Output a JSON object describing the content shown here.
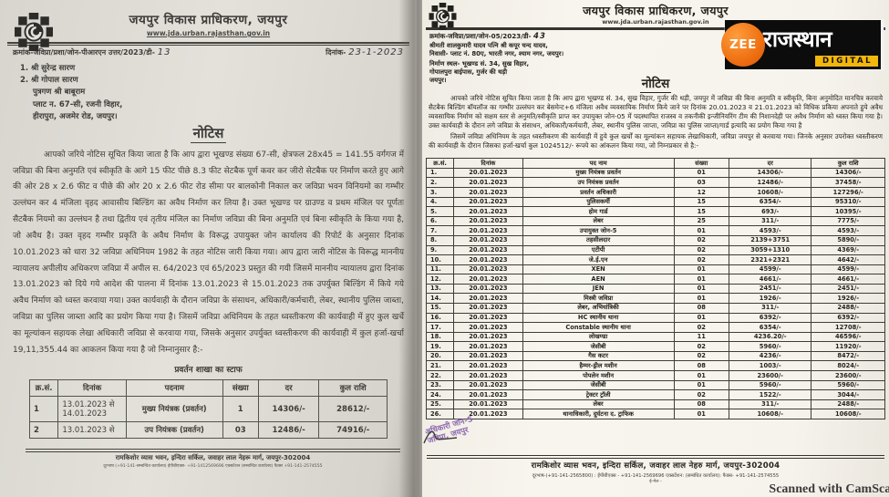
{
  "zee_logo": {
    "zee": "ZEE",
    "name": "राजस्थान",
    "digital": "DIGITAL",
    "black": "#0c0c0c",
    "orange": "#ee7011",
    "yellow": "#f2b70d"
  },
  "left_doc": {
    "org_name": "जयपुर विकास प्राधिकरण, जयपुर",
    "website": "www.jda.urban.rajasthan.gov.in",
    "ref_prefix": "क्रमांक-जविप्रा/प्रशा/जोन-पीआरएन उत्तर/2023/डी-",
    "ref_number": "13",
    "date_prefix": "दिनांक-",
    "date_value": "23-1-2023",
    "addressees": [
      "1.  श्री सुरेन्द्र सारण",
      "2.  श्री गोपाल सारण",
      "पुत्रगण श्री बाबूराम",
      "प्लाट न. 67-सी, रजनी विहार,",
      "हीरापुरा, अजमेर रोड, जयपुर।"
    ],
    "notice_heading": "नोटिस",
    "body": "आपको जरिये नोटिस सूचित किया जाता है कि आप द्वारा भूखण्ड संख्या 67-सी, क्षेत्रफल 28x45 = 141.55 वर्गगज में जविप्रा की बिना अनुमति एवं स्वीकृति के आगे 15 फीट पीछे 8.3 फीट सेटबैक पूर्ण कवर कर जीरो सेटबैक पर निर्माण करते हुए आगे की ओर 28 x 2.6 फीट व पीछे की ओर 20 x 2.6 फीट रोड सीमा पर बालकोनी निकाल कर जविप्रा भवन विनियमो का गम्भीर उल्लंघन कर 4 मंजिला वृहद आवासीय बिल्डिंग का अवैध निर्माण कर लिया है। उक्त भूखण्ड पर ग्राउण्ड व प्रथम मंजिल पर पूर्णतः सैटबैक नियमो का उल्लंघन है तथा द्वितीय एवं तृतीय मंजिल का निर्माण जविप्रा की बिना अनुमति एवं बिना स्वीकृति के किया गया है, जो अवैध है। उक्त वृहद गम्भीर प्रकृति के अवैध निर्माण के विरूद्ध उपायुक्त जोन कार्यालय की रिपोर्ट के अनुसार दिनांक 10.01.2023 को धारा 32 जविप्रा अधिनियम 1982 के तहत नोटिस जारी किया गया। आप द्वारा जारी नोटिस के विरूद्ध माननीय न्यायालय अपीलीय अधिकरण जविप्रा में अपील स. 64/2023 एवं 65/2023 प्रस्तुत की गयी जिसमें माननीय न्यायालय द्वारा दिनांक 13.01.2023 को दिये गये आदेश की पालना में दिनांक 13.01.2023 से 15.01.2023 तक उपर्युक्त बिल्डिंग में किये गये अवैध निर्माण को ध्वस्त करवाया गया। उक्त कार्यवाही के दौरान जविप्रा के संसाधन, अधिकारी/कर्मचारी, लेबर, स्थानीय पुलिस जाब्ता, जविप्रा का पुलिस जाब्ता आदि का प्रयोग किया गया है। जिसमें जविप्रा अधिनियम के तहत ध्वस्तीकरण की कार्यवाही में हुए कुल खर्चे का मूल्यांकन सहायक लेखा अधिकारी जविप्रा से करवाया गया, जिसके अनुसार उपर्युक्त ध्वस्तीकरण की कार्यवाही में कुल हर्जा-खर्चा 19,11,355.44 का आकलन किया गया है जो निम्नानुसार है:-",
    "table_title": "प्रवर्तन शाखा का स्टाफ",
    "table": {
      "headers": [
        "क्र.सं.",
        "दिनांक",
        "पदनाम",
        "संख्या",
        "दर",
        "कुल राशि"
      ],
      "rows": [
        [
          "1",
          "13.01.2023 से 14.01.2023",
          "मुख्य नियंत्रक (प्रवर्तन)",
          "1",
          "14306/-",
          "28612/-"
        ],
        [
          "2",
          "13.01.2023 से",
          "उप नियंत्रक (प्रवर्तन)",
          "03",
          "12486/-",
          "74916/-"
        ]
      ]
    },
    "footer_address": "रामकिशोर व्यास भवन, इन्दिरा सर्किल, जवाहर  लाल नेहरू मार्ग, जयपुर-302004",
    "footer_phone": "दूरभाष (+91-141-सम्बन्धित कार्यालय) ईपीबीएक्स- +91-1412569696 एक्सटेंशन (सम्बन्धित कार्यालय) फैक्स +91-141-2574555"
  },
  "right_doc": {
    "org_name": "जयपुर विकास प्राधिकरण, जयपुर",
    "website": "www.jda.urban.rajasthan.gov.in",
    "ref_prefix": "क्रमांक-जविप्रा/प्रशा/जोन-05/2023/डी-",
    "ref_number": "43",
    "addressees": [
      "श्रीमती शालकुमारी यादव पत्नि श्री कपूर चन्द यादव,",
      "निवासी- प्लाट नं. 80ए, भारती नगर, श्याम नगर, जयपुर।",
      "निर्माण स्थल- भूखण्ड सं. 34, सुख विहार,",
      "गोपालपुरा बाईपास, गुर्जर की थड़ी",
      "जयपुर।"
    ],
    "notice_heading": "नोटिस",
    "body_para1": "आपको जरिये नोटिस सूचित किया जाता है कि आप द्वारा भूखण्ड सं. 34, सुख विहार, गुर्जर की थड़ी, जयपुर में जविप्रा की बिना अनुमति व स्वीकृति, बिना अनुमोदित मानचित्र करवाये सैटबैक बिल्डिंग बॉयलॉज का गम्भीर उल्लंघन कर बेसमेन्ट+6 मंजिला अवैध व्यवसायिक निर्माण किये जाने पर दिनांक 20.01.2023 व 21.01.2023 को विधिक प्रकिया अपनाते हुये अवैध व्यवसायिक निर्माण को सक्षम स्तर से अनुमति/स्वीकृति प्राप्त कर उपायुक्त जोन-05 में पदस्थापित राजस्व व तकनीकी इन्जीनियरिंग टीम की निशानदेही पर अवैध निर्माण को ध्वस्त किया गया है। उक्त कार्यवाही के दौरान लगे जविप्रा के संसाधन, अधिकारी/कर्मचारी, लेबर, स्थानीय पुलिस जाप्ता, जविप्रा का पुलिस जाप्ता/गार्ड इत्यादि का प्रयोग किया गया है",
    "body_para2": "जिसमें जविप्रा अधिनियम के तहत ध्वस्तीकरण की कार्यवाही में हुये कुल खर्चों का मूल्यांकन सहायक लेखाधिकारी, जविप्रा जयपुर से करवाया गया। जिनके अनुसार उपरोक्त ध्वस्तीकरण की कार्यवाही के दौरान जिसका हर्जा-खर्चा कुल 1024512/- रूपये का आंकलन किया गया, जो निम्नप्रकार से है:-",
    "table": {
      "headers": [
        "क्र.सं.",
        "दिनांक",
        "पद नाम",
        "संख्या",
        "दर",
        "कुल राशि"
      ],
      "rows": [
        [
          "1.",
          "20.01.2023",
          "मुख्य नियंत्रक प्रवर्तन",
          "01",
          "14306/-",
          "14306/-"
        ],
        [
          "2.",
          "20.01.2023",
          "उप नियंत्रक प्रवर्तन",
          "03",
          "12486/-",
          "37458/-"
        ],
        [
          "3.",
          "20.01.2023",
          "प्रवर्तन अधिकारी",
          "12",
          "10608/-",
          "127296/-"
        ],
        [
          "4.",
          "20.01.2023",
          "पुलिसकर्मी",
          "15",
          "6354/-",
          "95310/-"
        ],
        [
          "5.",
          "20.01.2023",
          "होम गार्ड",
          "15",
          "693/-",
          "10395/-"
        ],
        [
          "6.",
          "20.01.2023",
          "लेबर",
          "25",
          "311/-",
          "7775/-"
        ],
        [
          "7.",
          "20.01.2023",
          "उपायुक्त जोन-5",
          "01",
          "4593/-",
          "4593/-"
        ],
        [
          "8.",
          "20.01.2023",
          "तहसीलदार",
          "02",
          "2139+3751",
          "5890/-"
        ],
        [
          "9.",
          "20.01.2023",
          "एटीपी",
          "02",
          "3059+1310",
          "4369/-"
        ],
        [
          "10.",
          "20.01.2023",
          "जे.ई.एन",
          "02",
          "2321+2321",
          "4642/-"
        ],
        [
          "11.",
          "20.01.2023",
          "XEN",
          "01",
          "4599/-",
          "4599/-"
        ],
        [
          "12.",
          "20.01.2023",
          "AEN",
          "01",
          "4661/-",
          "4661/-"
        ],
        [
          "13.",
          "20.01.2023",
          "JEN",
          "01",
          "2451/-",
          "2451/-"
        ],
        [
          "14.",
          "20.01.2023",
          "मिस्त्री जविप्रा",
          "01",
          "1926/-",
          "1926/-"
        ],
        [
          "15.",
          "20.01.2023",
          "लेबर, अभियांत्रिकी",
          "08",
          "311/-",
          "2488/-"
        ],
        [
          "16.",
          "20.01.2023",
          "HC स्थानीय थाना",
          "01",
          "6392/-",
          "6392/-"
        ],
        [
          "17.",
          "20.01.2023",
          "Constable स्थानीय थाना",
          "02",
          "6354/-",
          "12708/-"
        ],
        [
          "18.",
          "20.01.2023",
          "लोखण्डा",
          "11",
          "4236.20/-",
          "46596/-"
        ],
        [
          "19.",
          "20.01.2023",
          "जेसीबी",
          "02",
          "5960/-",
          "11920/-"
        ],
        [
          "20.",
          "20.01.2023",
          "गैस कटर",
          "02",
          "4236/-",
          "8472/-"
        ],
        [
          "21.",
          "20.01.2023",
          "हैम्मर-ड्रील मशीन",
          "08",
          "1003/-",
          "8024/-"
        ],
        [
          "22.",
          "20.01.2023",
          "पोपलेन मशीन",
          "01",
          "23600/-",
          "23600/-"
        ],
        [
          "23.",
          "20.01.2023",
          "जेसीबी",
          "01",
          "5960/-",
          "5960/-"
        ],
        [
          "24.",
          "20.01.2023",
          "ट्रेक्टर ट्रॉली",
          "02",
          "1522/-",
          "3044/-"
        ],
        [
          "25.",
          "20.01.2023",
          "लेबर",
          "08",
          "311/-",
          "2488/-"
        ],
        [
          "26.",
          "20.01.2023",
          "थानाधिकारी, दुर्घटना द. ट्राफिक",
          "01",
          "10608/-",
          "10608/-"
        ]
      ]
    },
    "stamp_line1": "अधिकारी जोन-5",
    "stamp_line2": "जविप्रा, जयपुर",
    "footer_address": "रामकिशोर व्यास भवन, इन्दिरा सर्किल, जवाहर लाल नेहरु मार्ग, जयपुर-302004",
    "footer_phone": "दूरभाष-(+91-141-2565800) : ईपीबीएक्स - +91-141-2569696 एक्सटेंशन: (सम्बंधित कार्यालय): फैक्स- +91-141-2574555",
    "footer_email": "ई-मेल -",
    "scanned_note": "Scanned with CamScan"
  }
}
